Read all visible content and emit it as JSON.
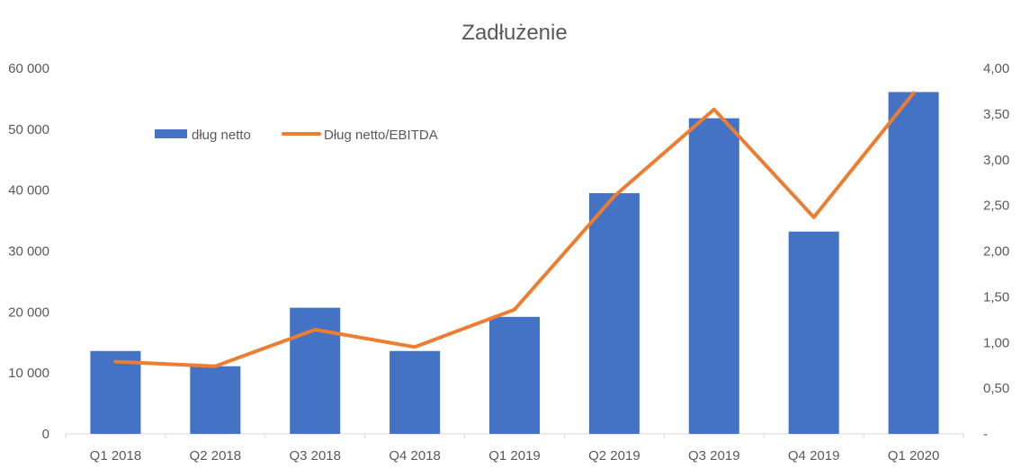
{
  "chart_data": {
    "type": "bar+line",
    "title": "Zadłużenie",
    "categories": [
      "Q1 2018",
      "Q2 2018",
      "Q3 2018",
      "Q4 2018",
      "Q1 2019",
      "Q2 2019",
      "Q3 2019",
      "Q4 2019",
      "Q1 2020"
    ],
    "series": [
      {
        "name": "dług netto",
        "type": "bar",
        "axis": "left",
        "color": "#4472C4",
        "values": [
          13600,
          11100,
          20700,
          13600,
          19200,
          39500,
          51800,
          33200,
          56100
        ]
      },
      {
        "name": "Dług netto/EBITDA",
        "type": "line",
        "axis": "right",
        "color": "#ED7D31",
        "values": [
          0.79,
          0.74,
          1.14,
          0.95,
          1.36,
          2.6,
          3.55,
          2.37,
          3.73
        ]
      }
    ],
    "y_left": {
      "lim": [
        0,
        60000
      ],
      "ticks": [
        0,
        10000,
        20000,
        30000,
        40000,
        50000,
        60000
      ],
      "tick_labels": [
        "0",
        "10 000",
        "20 000",
        "30 000",
        "40 000",
        "50 000",
        "60 000"
      ]
    },
    "y_right": {
      "lim": [
        0,
        4
      ],
      "ticks": [
        0,
        0.5,
        1,
        1.5,
        2,
        2.5,
        3,
        3.5,
        4
      ],
      "tick_labels": [
        "-",
        "0,50",
        "1,00",
        "1,50",
        "2,00",
        "2,50",
        "3,00",
        "3,50",
        "4,00"
      ]
    },
    "grid": false,
    "legend_position": "top-left"
  }
}
